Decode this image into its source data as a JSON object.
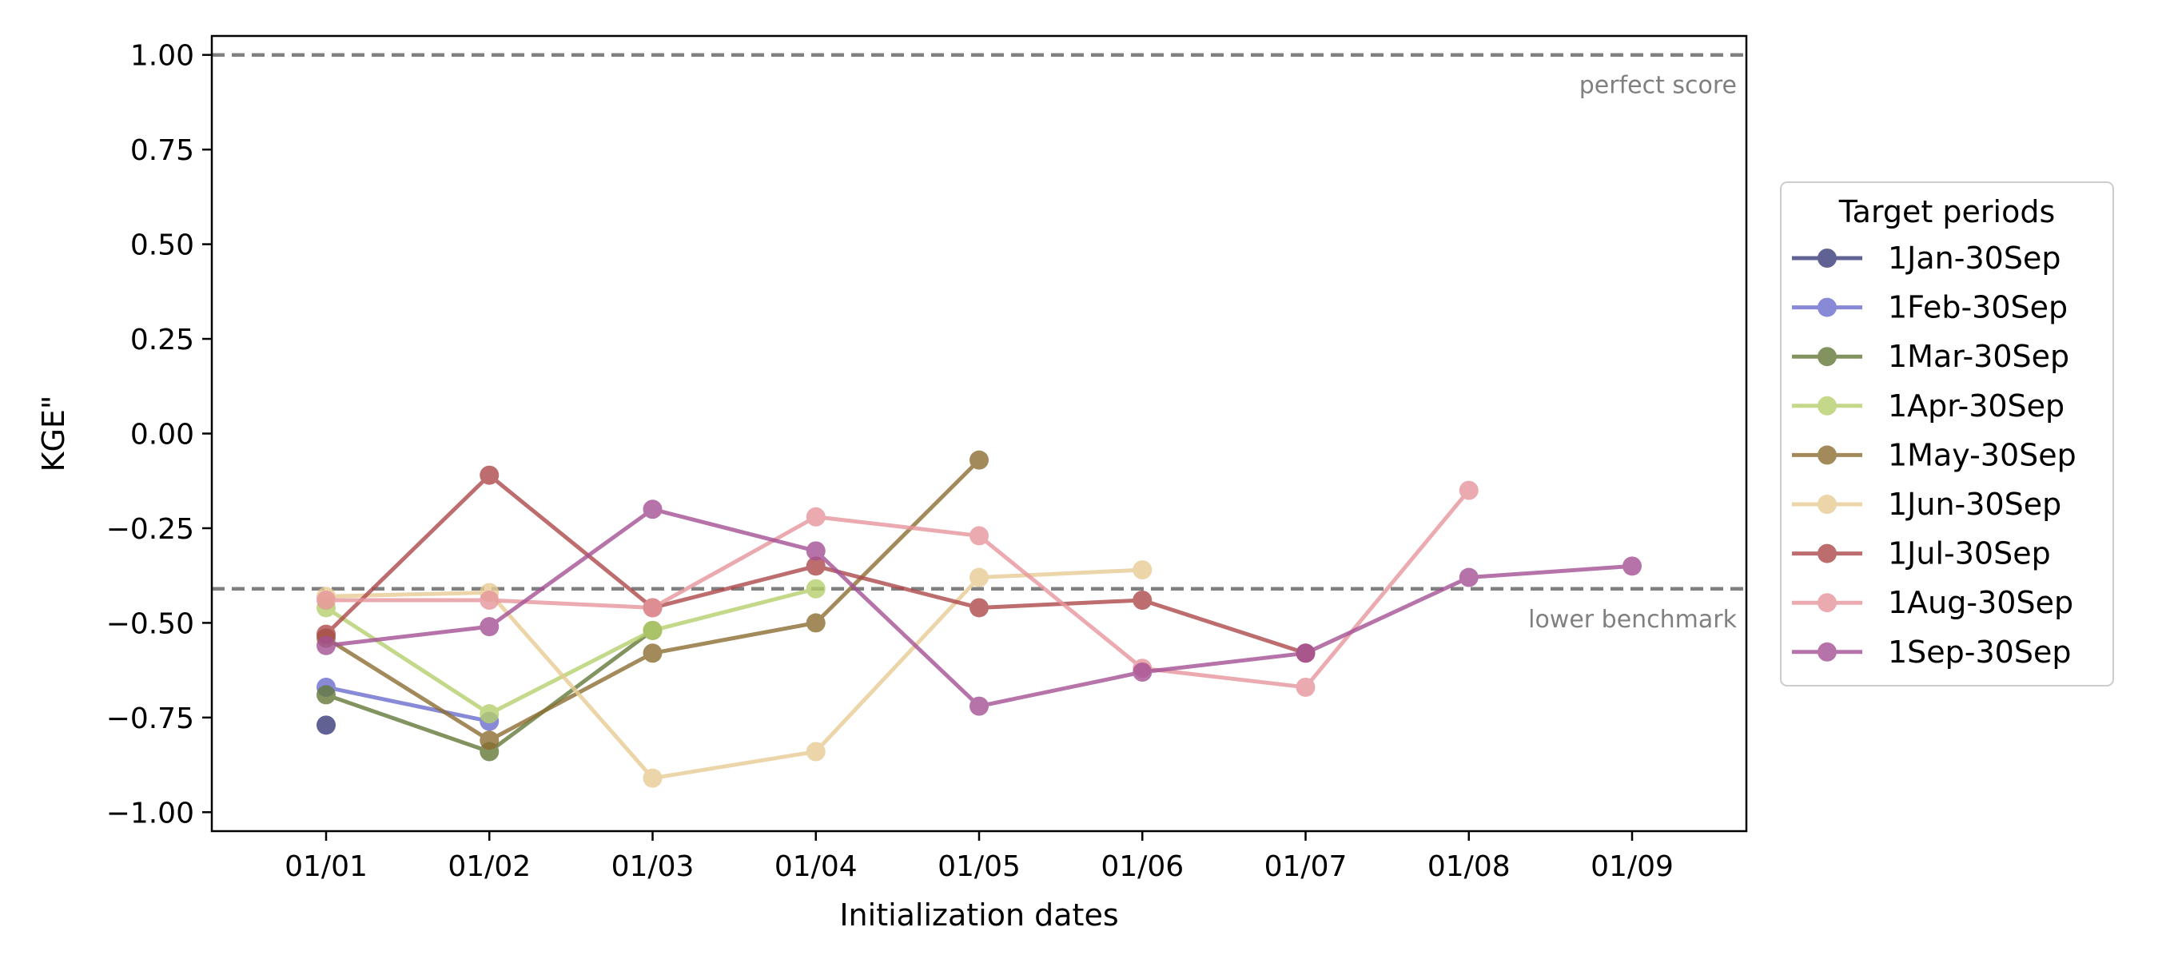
{
  "chart_data": {
    "type": "line",
    "xlabel": "Initialization dates",
    "ylabel": "KGE\"",
    "x": [
      "01/01",
      "01/02",
      "01/03",
      "01/04",
      "01/05",
      "01/06",
      "01/07",
      "01/08",
      "01/09"
    ],
    "yticks": [
      "1.00",
      "0.75",
      "0.50",
      "0.25",
      "0.00",
      "−0.25",
      "−0.50",
      "−0.75",
      "−1.00"
    ],
    "ytick_values": [
      1.0,
      0.75,
      0.5,
      0.25,
      0.0,
      -0.25,
      -0.5,
      -0.75,
      -1.0
    ],
    "ylim": [
      -1.05,
      1.05
    ],
    "grid": false,
    "reference_lines": [
      {
        "value": 1.0,
        "label": "perfect score",
        "color": "#808080"
      },
      {
        "value": -0.41,
        "label": "lower benchmark",
        "color": "#808080"
      }
    ],
    "legend": {
      "title": "Target periods",
      "placement": "right-outside"
    },
    "series": [
      {
        "name": "1Jan-30Sep",
        "color": "#393b79",
        "values": [
          -0.77,
          null,
          null,
          null,
          null,
          null,
          null,
          null,
          null
        ]
      },
      {
        "name": "1Feb-30Sep",
        "color": "#6b6ecf",
        "values": [
          -0.67,
          -0.76,
          null,
          null,
          null,
          null,
          null,
          null,
          null
        ]
      },
      {
        "name": "1Mar-30Sep",
        "color": "#637939",
        "values": [
          -0.69,
          -0.84,
          -0.52,
          null,
          null,
          null,
          null,
          null,
          null
        ]
      },
      {
        "name": "1Apr-30Sep",
        "color": "#b5cf6b",
        "values": [
          -0.46,
          -0.74,
          -0.52,
          -0.41,
          null,
          null,
          null,
          null,
          null
        ]
      },
      {
        "name": "1May-30Sep",
        "color": "#8c6d31",
        "values": [
          -0.54,
          -0.81,
          -0.58,
          -0.5,
          -0.07,
          null,
          null,
          null,
          null
        ]
      },
      {
        "name": "1Jun-30Sep",
        "color": "#e7cb94",
        "values": [
          -0.43,
          -0.42,
          -0.91,
          -0.84,
          -0.38,
          -0.36,
          null,
          null,
          null
        ]
      },
      {
        "name": "1Jul-30Sep",
        "color": "#ad494a",
        "values": [
          -0.53,
          -0.11,
          -0.46,
          -0.35,
          -0.46,
          -0.44,
          -0.58,
          null,
          null
        ]
      },
      {
        "name": "1Aug-30Sep",
        "color": "#e7969c",
        "values": [
          -0.44,
          -0.44,
          -0.46,
          -0.22,
          -0.27,
          -0.62,
          -0.67,
          -0.15,
          null
        ]
      },
      {
        "name": "1Sep-30Sep",
        "color": "#a55194",
        "values": [
          -0.56,
          -0.51,
          -0.2,
          -0.31,
          -0.72,
          -0.63,
          -0.58,
          -0.38,
          -0.35
        ]
      }
    ]
  }
}
